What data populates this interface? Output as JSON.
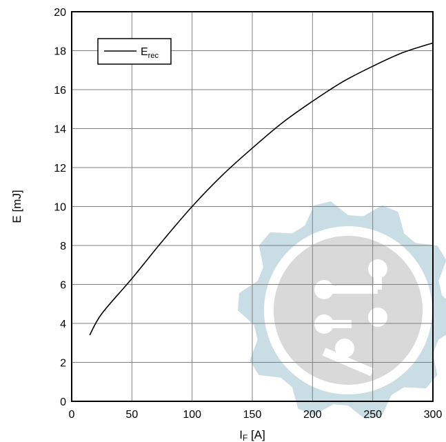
{
  "chart_data": {
    "type": "line",
    "xlabel_main": "I",
    "xlabel_sub": "F",
    "xlabel_unit": " [A]",
    "ylabel": "E [mJ]",
    "xlim": [
      0,
      300
    ],
    "ylim": [
      0,
      20
    ],
    "x_ticks": [
      "0",
      "50",
      "100",
      "150",
      "200",
      "250",
      "300"
    ],
    "y_ticks": [
      "0",
      "2",
      "4",
      "6",
      "8",
      "10",
      "12",
      "14",
      "16",
      "18",
      "20"
    ],
    "grid": true,
    "legend_position": "top-left",
    "series": [
      {
        "name_main": "E",
        "name_sub": "rec",
        "color": "#000000",
        "x": [
          15,
          25,
          50,
          75,
          100,
          125,
          150,
          175,
          200,
          225,
          250,
          275,
          300
        ],
        "y": [
          3.4,
          4.5,
          6.3,
          8.2,
          10.0,
          11.6,
          13.0,
          14.3,
          15.4,
          16.4,
          17.2,
          17.9,
          18.4
        ]
      }
    ]
  },
  "watermark": {
    "gear_color": "#c9dde4",
    "inner_color": "#d9d9d9"
  }
}
